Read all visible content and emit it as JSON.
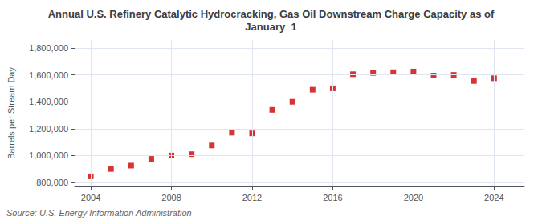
{
  "chart_data": {
    "type": "scatter",
    "title": "Annual U.S. Refinery Catalytic Hydrocracking, Gas Oil Downstream Charge Capacity as of\nJanuary  1",
    "ylabel": "Barrels per Stream Day",
    "source": "Source: U.S. Energy Information Administration",
    "x": [
      2004,
      2005,
      2006,
      2007,
      2008,
      2009,
      2010,
      2011,
      2012,
      2013,
      2014,
      2015,
      2016,
      2017,
      2018,
      2019,
      2020,
      2021,
      2022,
      2023,
      2024
    ],
    "values": [
      845000,
      900000,
      925000,
      975000,
      1000000,
      1010000,
      1075000,
      1170000,
      1165000,
      1340000,
      1400000,
      1490000,
      1500000,
      1605000,
      1615000,
      1620000,
      1625000,
      1595000,
      1600000,
      1555000,
      1575000
    ],
    "color": "#cc0000",
    "marker": "square",
    "xlim": [
      2003.2,
      2025.5
    ],
    "xticks": [
      2004,
      2008,
      2012,
      2016,
      2020,
      2024
    ],
    "ylim": [
      770000,
      1860000
    ],
    "yticks": [
      {
        "value": 800000,
        "label": "800,000"
      },
      {
        "value": 1000000,
        "label": "1,000,000"
      },
      {
        "value": 1200000,
        "label": "1,200,000"
      },
      {
        "value": 1400000,
        "label": "1,400,000"
      },
      {
        "value": 1600000,
        "label": "1,600,000"
      },
      {
        "value": 1800000,
        "label": "1,800,000"
      }
    ],
    "grid": true
  }
}
